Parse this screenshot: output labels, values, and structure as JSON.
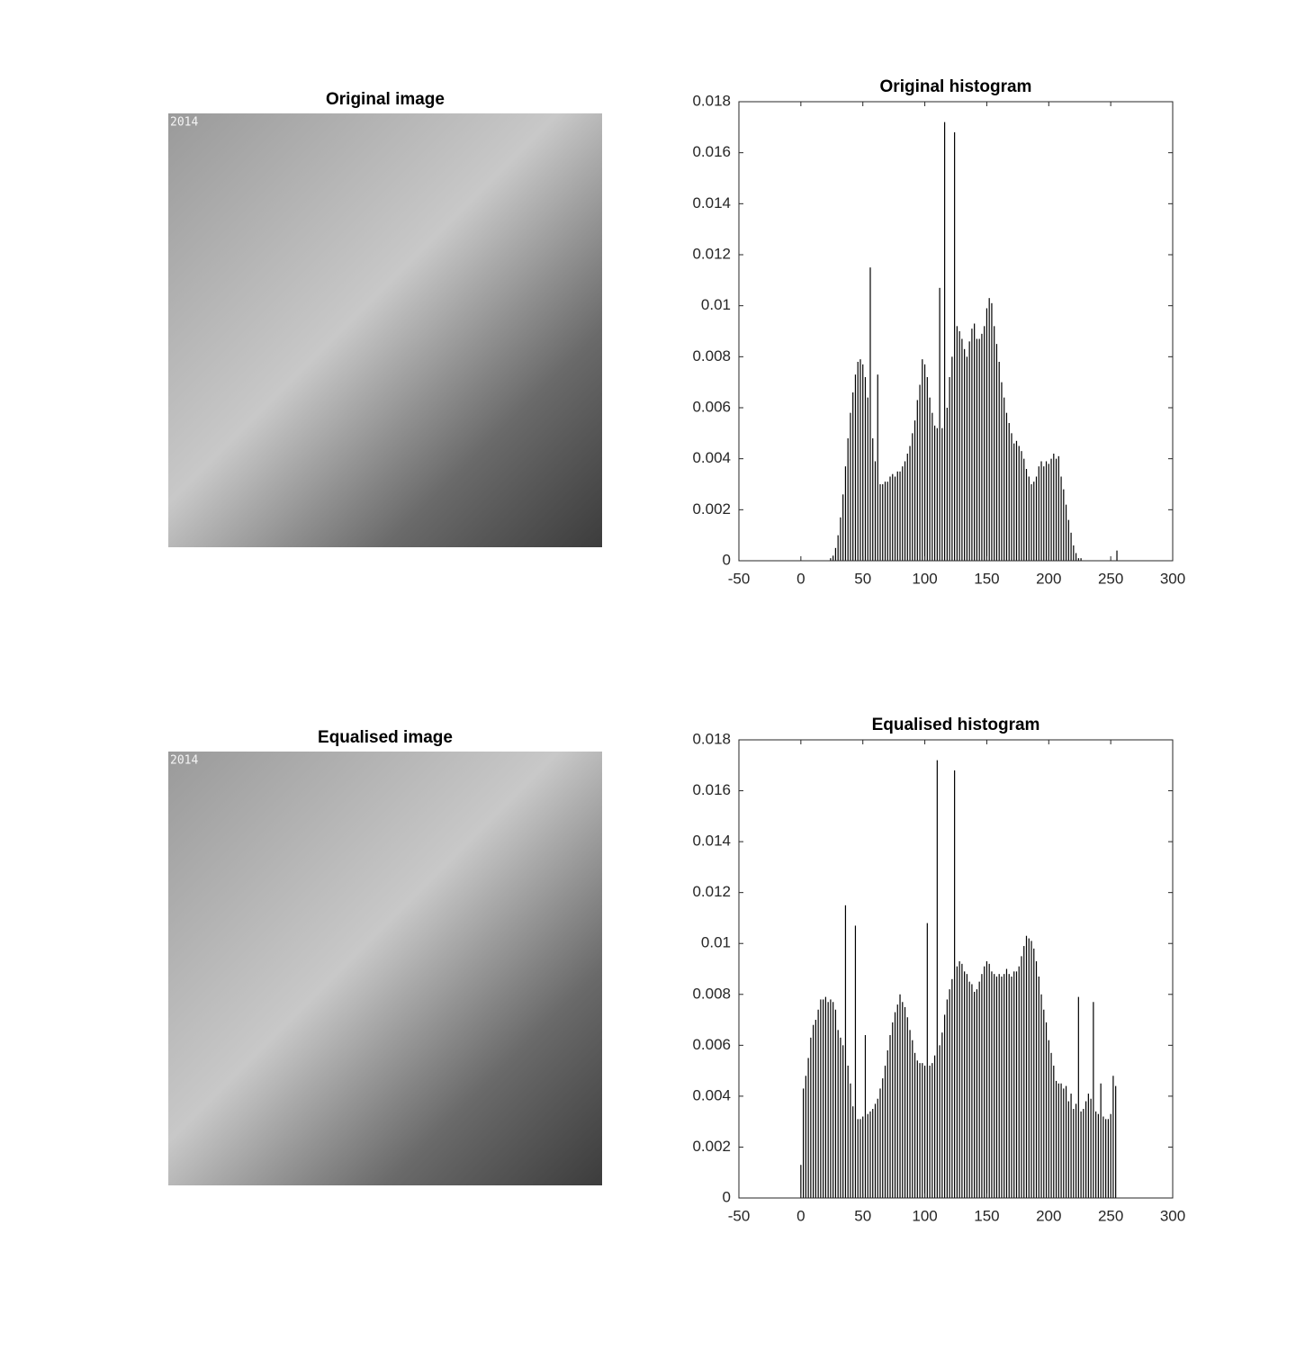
{
  "images": [
    {
      "title": "Original image",
      "stamp": "2014"
    },
    {
      "title": "Equalised image",
      "stamp": "2014"
    }
  ],
  "chart_data": [
    {
      "type": "histogram",
      "title": "Original histogram",
      "color": "#000000",
      "xlim": [
        -50,
        300
      ],
      "xticks": [
        -50,
        0,
        50,
        100,
        150,
        200,
        250,
        300
      ],
      "ylim": [
        0,
        0.018
      ],
      "yticks": [
        0,
        0.002,
        0.004,
        0.006,
        0.008,
        0.01,
        0.012,
        0.014,
        0.016,
        0.018
      ],
      "x": [
        24,
        26,
        28,
        30,
        32,
        34,
        36,
        38,
        40,
        42,
        44,
        46,
        48,
        50,
        52,
        54,
        56,
        58,
        60,
        62,
        64,
        66,
        68,
        70,
        72,
        74,
        76,
        78,
        80,
        82,
        84,
        86,
        88,
        90,
        92,
        94,
        96,
        98,
        100,
        102,
        104,
        106,
        108,
        110,
        112,
        114,
        116,
        118,
        120,
        122,
        124,
        126,
        128,
        130,
        132,
        134,
        136,
        138,
        140,
        142,
        144,
        146,
        148,
        150,
        152,
        154,
        156,
        158,
        160,
        162,
        164,
        166,
        168,
        170,
        172,
        174,
        176,
        178,
        180,
        182,
        184,
        186,
        188,
        190,
        192,
        194,
        196,
        198,
        200,
        202,
        204,
        206,
        208,
        210,
        212,
        214,
        216,
        218,
        220,
        222,
        224,
        226,
        255
      ],
      "values": [
        0.0001,
        0.0002,
        0.0005,
        0.001,
        0.0017,
        0.0026,
        0.0037,
        0.0048,
        0.0058,
        0.0066,
        0.0073,
        0.0078,
        0.0079,
        0.0077,
        0.0072,
        0.0064,
        0.0115,
        0.0048,
        0.0039,
        0.0073,
        0.003,
        0.003,
        0.0031,
        0.0031,
        0.0033,
        0.0034,
        0.0033,
        0.0035,
        0.0035,
        0.0037,
        0.0039,
        0.0042,
        0.0045,
        0.005,
        0.0055,
        0.0063,
        0.0069,
        0.0079,
        0.0077,
        0.0072,
        0.0064,
        0.0058,
        0.0053,
        0.0052,
        0.0107,
        0.0052,
        0.0172,
        0.006,
        0.0072,
        0.008,
        0.0168,
        0.0092,
        0.009,
        0.0087,
        0.0083,
        0.008,
        0.0086,
        0.0091,
        0.0093,
        0.0087,
        0.0087,
        0.0089,
        0.0092,
        0.0099,
        0.0103,
        0.0101,
        0.0092,
        0.0085,
        0.0078,
        0.007,
        0.0064,
        0.0058,
        0.0054,
        0.005,
        0.0046,
        0.0047,
        0.0045,
        0.0043,
        0.004,
        0.0036,
        0.0033,
        0.003,
        0.0031,
        0.0033,
        0.0037,
        0.0039,
        0.0037,
        0.0039,
        0.0038,
        0.004,
        0.0042,
        0.004,
        0.0041,
        0.0033,
        0.0028,
        0.0022,
        0.0016,
        0.0011,
        0.0006,
        0.0003,
        0.0001,
        0.0001,
        0.0004
      ]
    },
    {
      "type": "histogram",
      "title": "Equalised histogram",
      "color": "#000000",
      "xlim": [
        -50,
        300
      ],
      "xticks": [
        -50,
        0,
        50,
        100,
        150,
        200,
        250,
        300
      ],
      "ylim": [
        0,
        0.018
      ],
      "yticks": [
        0,
        0.002,
        0.004,
        0.006,
        0.008,
        0.01,
        0.012,
        0.014,
        0.016,
        0.018
      ],
      "x": [
        0,
        2,
        4,
        6,
        8,
        10,
        12,
        14,
        16,
        18,
        20,
        22,
        24,
        26,
        28,
        30,
        32,
        34,
        36,
        38,
        40,
        42,
        44,
        46,
        48,
        50,
        52,
        54,
        56,
        58,
        60,
        62,
        64,
        66,
        68,
        70,
        72,
        74,
        76,
        78,
        80,
        82,
        84,
        86,
        88,
        90,
        92,
        94,
        96,
        98,
        100,
        102,
        104,
        106,
        108,
        110,
        112,
        114,
        116,
        118,
        120,
        122,
        124,
        126,
        128,
        130,
        132,
        134,
        136,
        138,
        140,
        142,
        144,
        146,
        148,
        150,
        152,
        154,
        156,
        158,
        160,
        162,
        164,
        166,
        168,
        170,
        172,
        174,
        176,
        178,
        180,
        182,
        184,
        186,
        188,
        190,
        192,
        194,
        196,
        198,
        200,
        202,
        204,
        206,
        208,
        210,
        212,
        214,
        216,
        218,
        220,
        222,
        224,
        226,
        228,
        230,
        232,
        234,
        236,
        238,
        240,
        242,
        244,
        246,
        248,
        250,
        252,
        254
      ],
      "values": [
        0.0013,
        0.0043,
        0.0048,
        0.0055,
        0.0063,
        0.0068,
        0.007,
        0.0074,
        0.0078,
        0.0078,
        0.0079,
        0.0077,
        0.0078,
        0.0077,
        0.0074,
        0.0066,
        0.0063,
        0.006,
        0.0115,
        0.0052,
        0.0045,
        0.0036,
        0.0107,
        0.0031,
        0.0031,
        0.0032,
        0.0064,
        0.0033,
        0.0034,
        0.0035,
        0.0037,
        0.0039,
        0.0043,
        0.0047,
        0.0052,
        0.0058,
        0.0064,
        0.0069,
        0.0073,
        0.0076,
        0.008,
        0.0077,
        0.0075,
        0.0071,
        0.0066,
        0.0062,
        0.0057,
        0.0054,
        0.0053,
        0.0053,
        0.0052,
        0.0108,
        0.0052,
        0.0053,
        0.0056,
        0.0172,
        0.006,
        0.0065,
        0.0072,
        0.0078,
        0.0082,
        0.0086,
        0.0168,
        0.0091,
        0.0093,
        0.0092,
        0.0089,
        0.0088,
        0.0085,
        0.0084,
        0.0081,
        0.0082,
        0.0085,
        0.0088,
        0.0091,
        0.0093,
        0.0092,
        0.0089,
        0.0088,
        0.0087,
        0.0088,
        0.0087,
        0.0088,
        0.009,
        0.0088,
        0.0087,
        0.0089,
        0.0089,
        0.0091,
        0.0095,
        0.0099,
        0.0103,
        0.0102,
        0.0101,
        0.0098,
        0.0093,
        0.0087,
        0.008,
        0.0074,
        0.0069,
        0.0062,
        0.0057,
        0.0052,
        0.0046,
        0.0045,
        0.0045,
        0.0043,
        0.0044,
        0.0038,
        0.0041,
        0.0035,
        0.0037,
        0.0079,
        0.0034,
        0.0035,
        0.0038,
        0.0041,
        0.0039,
        0.0077,
        0.0034,
        0.0033,
        0.0045,
        0.0032,
        0.0031,
        0.0031,
        0.0033,
        0.0048,
        0.0044
      ]
    }
  ]
}
